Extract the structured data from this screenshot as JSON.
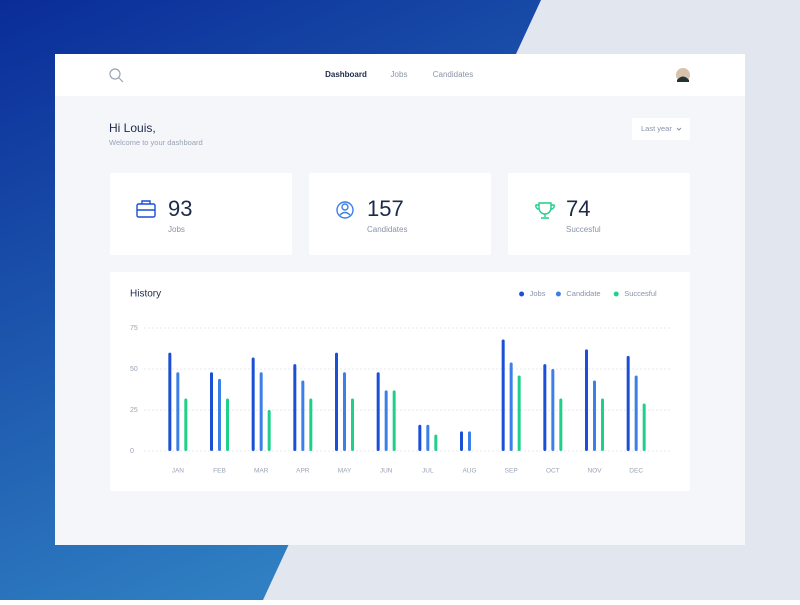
{
  "header": {
    "nav": [
      "Dashboard",
      "Jobs",
      "Candidates"
    ]
  },
  "greeting": {
    "title": "Hi Louis,",
    "subtitle": "Welcome to your dashboard"
  },
  "filter": "Last year",
  "stats": [
    {
      "value": 93,
      "label": "Jobs"
    },
    {
      "value": 157,
      "label": "Candidates"
    },
    {
      "value": 74,
      "label": "Succesful"
    }
  ],
  "chart_data": {
    "type": "bar",
    "title": "History",
    "categories": [
      "JAN",
      "FEB",
      "MAR",
      "APR",
      "MAY",
      "JUN",
      "JUL",
      "AUG",
      "SEP",
      "OCT",
      "NOV",
      "DEC"
    ],
    "series": [
      {
        "name": "Jobs",
        "color": "#1a4fd6",
        "values": [
          60,
          48,
          57,
          53,
          60,
          48,
          16,
          12,
          68,
          53,
          62,
          58
        ]
      },
      {
        "name": "Candidate",
        "color": "#3d7fe8",
        "values": [
          48,
          44,
          48,
          43,
          48,
          37,
          16,
          12,
          54,
          50,
          43,
          46
        ]
      },
      {
        "name": "Succesful",
        "color": "#1fcf8a",
        "values": [
          32,
          32,
          25,
          32,
          32,
          37,
          10,
          null,
          46,
          32,
          32,
          29
        ]
      }
    ],
    "ylim": [
      0,
      75
    ],
    "yticks": [
      0,
      25,
      50,
      75
    ],
    "grid": true,
    "legend": "top-right"
  }
}
